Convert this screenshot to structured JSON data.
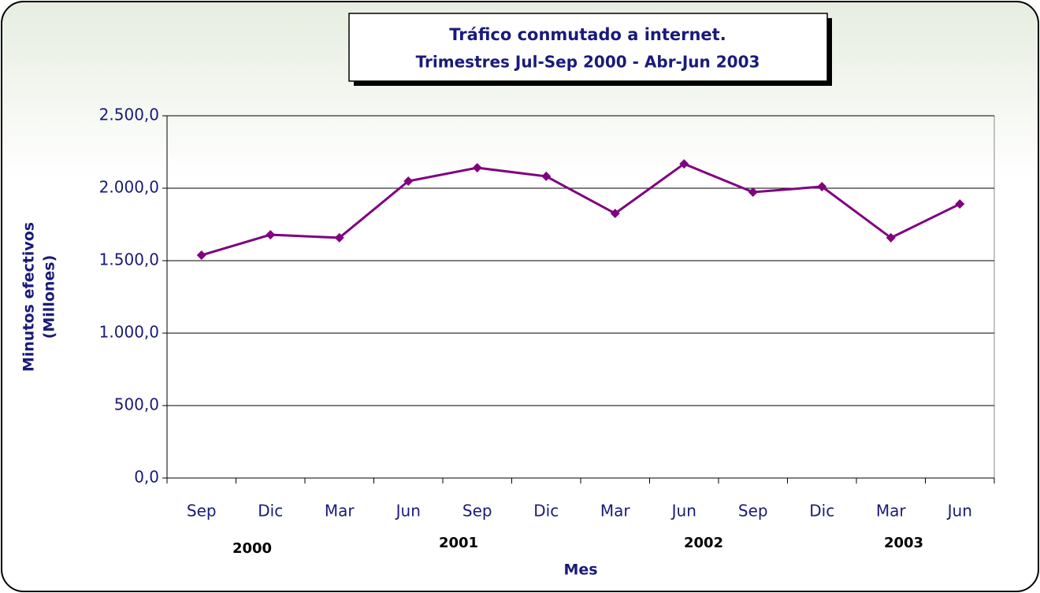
{
  "chart_data": {
    "type": "line",
    "title": [
      "Tráfico conmutado a internet.",
      "Trimestres Jul-Sep 2000 - Abr-Jun 2003"
    ],
    "y_label": [
      "Minutos efectivos",
      "(Millones)"
    ],
    "x_label": "Mes",
    "categories": [
      "Sep",
      "Dic",
      "Mar",
      "Jun",
      "Sep",
      "Dic",
      "Mar",
      "Jun",
      "Sep",
      "Dic",
      "Mar",
      "Jun"
    ],
    "group_labels": [
      "2000",
      "2001",
      "2002",
      "2003"
    ],
    "series": [
      {
        "name": "Minutos efectivos",
        "color": "#800080",
        "values": [
          1538,
          1679,
          1658,
          2049,
          2141,
          2082,
          1826,
          2168,
          1973,
          2011,
          1658,
          1891
        ]
      }
    ],
    "ylim": [
      0,
      2500
    ],
    "yticks": [
      {
        "value": 0,
        "label": "0,0"
      },
      {
        "value": 500,
        "label": "500,0"
      },
      {
        "value": 1000,
        "label": "1.000,0"
      },
      {
        "value": 1500,
        "label": "1.500,0"
      },
      {
        "value": 2000,
        "label": "2.000,0"
      },
      {
        "value": 2500,
        "label": "2.500,0"
      }
    ],
    "grid": true
  }
}
